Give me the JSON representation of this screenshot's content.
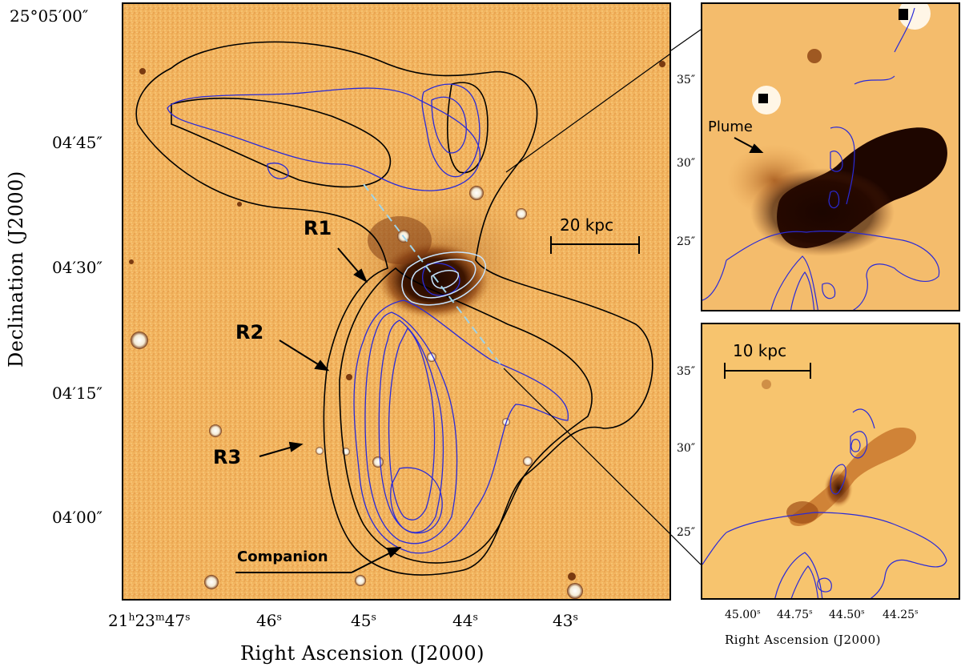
{
  "main_panel": {
    "y_ticks": [
      "25°05′00″",
      "04′45″",
      "04′30″",
      "04′15″",
      "04′00″"
    ],
    "x_ticks": [
      {
        "main": "21",
        "sup1": "h",
        "mid": "23",
        "sup2": "m",
        "end": "47",
        "sup3": "s"
      },
      {
        "main": "46",
        "sup1": "s"
      },
      {
        "main": "45",
        "sup1": "s"
      },
      {
        "main": "44",
        "sup1": "s"
      },
      {
        "main": "43",
        "sup1": "s"
      }
    ],
    "x_axis_title": "Right Ascension (J2000)",
    "y_axis_title": "Declination (J2000)",
    "labels": {
      "r1": "R1",
      "r2": "R2",
      "r3": "R3",
      "companion": "Companion",
      "scale_bar": "20 kpc"
    }
  },
  "top_inset": {
    "y_ticks": [
      "35″",
      "30″",
      "25″"
    ],
    "labels": {
      "plume": "Plume"
    }
  },
  "bottom_inset": {
    "y_ticks": [
      "35″",
      "30″",
      "25″"
    ],
    "x_ticks": [
      "45.00",
      "44.75",
      "44.50",
      "44.25"
    ],
    "x_tick_sup": "s",
    "x_axis_title": "Right Ascension (J2000)",
    "labels": {
      "scale_bar": "10 kpc"
    }
  },
  "colors": {
    "background_image": "#f2b45f",
    "black_contours": "#000000",
    "blue_contours": "#2a2ad8",
    "white_contours": "#c8e4ff",
    "dashed_axis": "#9fd3e8",
    "dark_core": "#2a0c00"
  }
}
